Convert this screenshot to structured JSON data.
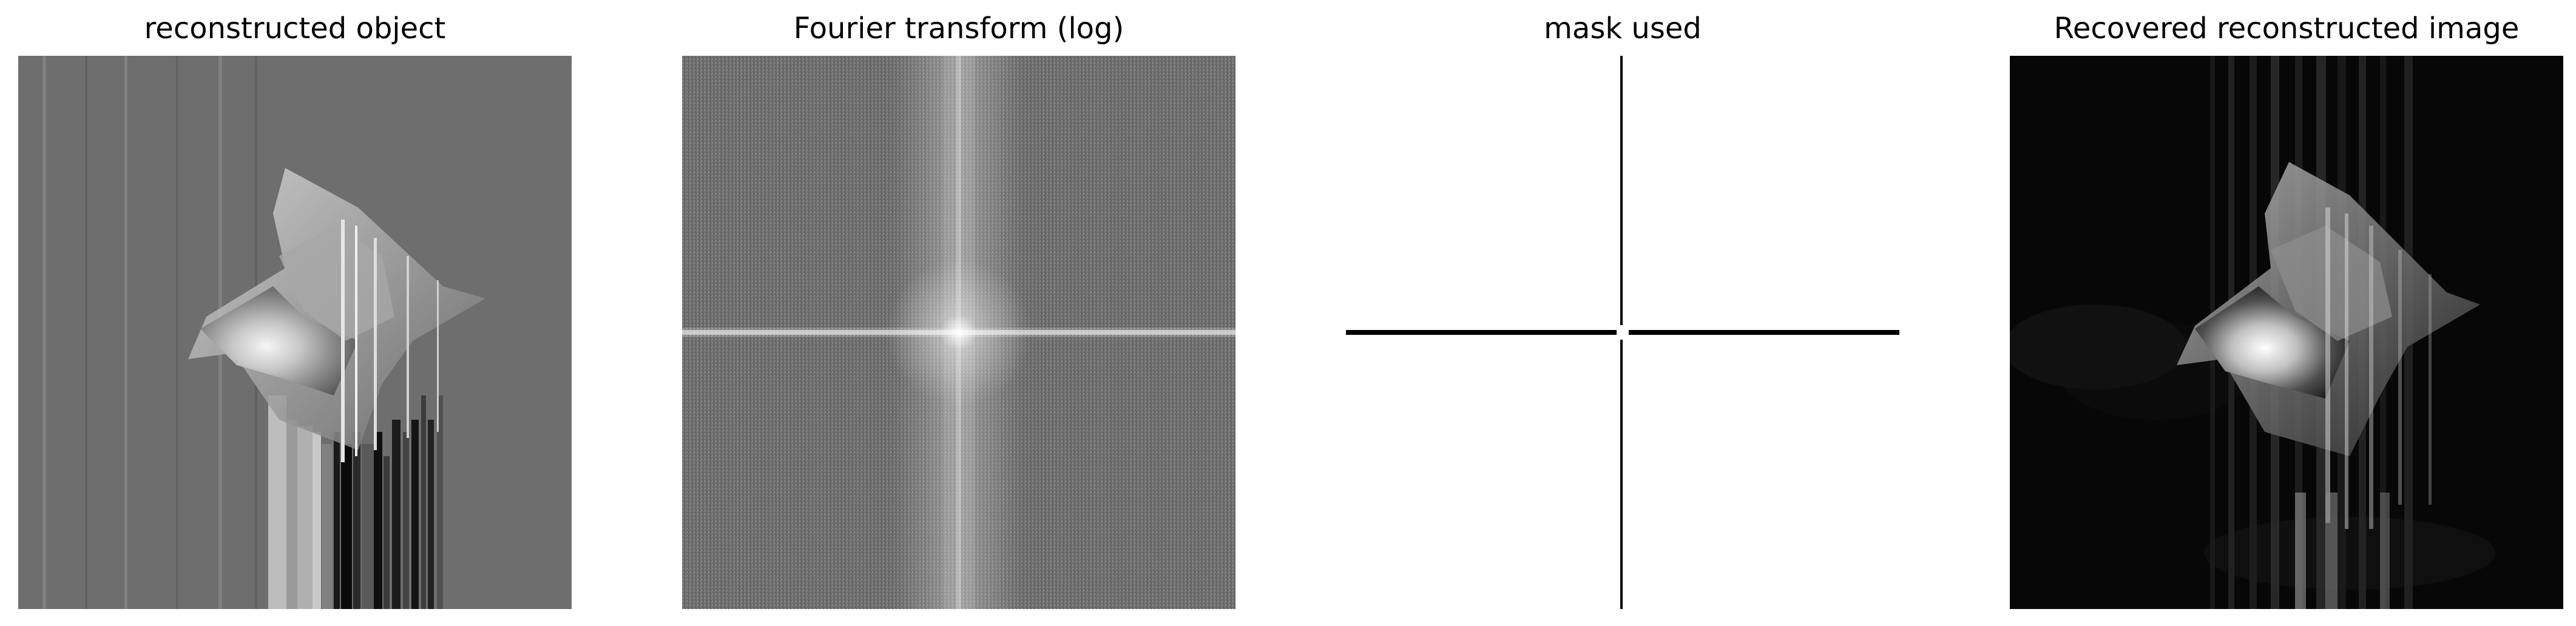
{
  "figure": {
    "panels": [
      {
        "title": "reconstructed object",
        "image": "grayscale reconstructed object with sharp bright star-like shape and vertical streak artifacts"
      },
      {
        "title": "Fourier transform (log)",
        "image": "log-magnitude Fourier spectrum with bright horizontal and vertical axes through center"
      },
      {
        "title": "mask used",
        "image": "binary mask showing a thin black horizontal line and vertical line crossing near center on white"
      },
      {
        "title": "Recovered reconstructed image",
        "image": "dark background recovered image with bright star-like shape and vertical streaks"
      }
    ]
  }
}
